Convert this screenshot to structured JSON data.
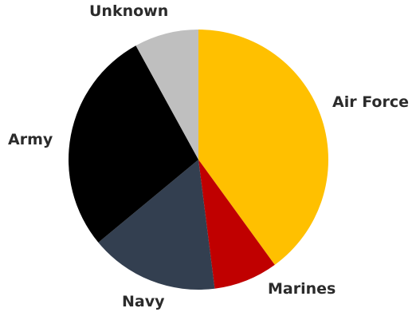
{
  "chart_data": {
    "type": "pie",
    "title": "",
    "start_angle_deg": 0,
    "direction": "clockwise",
    "legend": "none",
    "slices": [
      {
        "label": "Air Force",
        "value": 40,
        "color": "#ffc000"
      },
      {
        "label": "Marines",
        "value": 8,
        "color": "#c00000"
      },
      {
        "label": "Navy",
        "value": 16,
        "color": "#333f50"
      },
      {
        "label": "Army",
        "value": 28,
        "color": "#000000"
      },
      {
        "label": "Unknown",
        "value": 8,
        "color": "#bfbfbf"
      }
    ]
  }
}
